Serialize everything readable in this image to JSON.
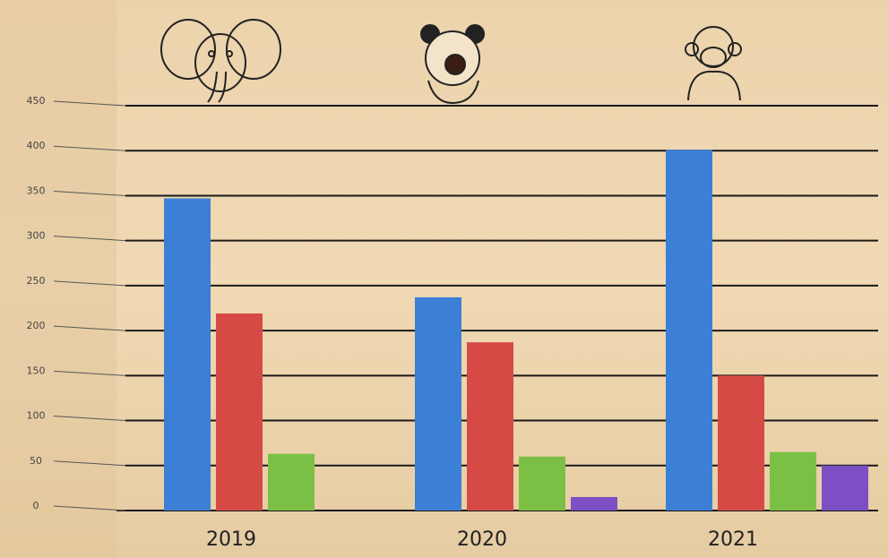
{
  "chart_data": {
    "type": "bar",
    "categories": [
      "2019",
      "2020",
      "2021"
    ],
    "series": [
      {
        "color": "#3b7fd6",
        "values": [
          347,
          237,
          401
        ]
      },
      {
        "color": "#d64a45",
        "values": [
          219,
          187,
          150
        ]
      },
      {
        "color": "#7cbf45",
        "values": [
          63,
          60,
          65
        ]
      },
      {
        "color": "#7d4fc4",
        "values": [
          null,
          15,
          50
        ]
      }
    ],
    "ylim": [
      0,
      450
    ],
    "yticks": [
      0,
      50,
      100,
      150,
      200,
      250,
      300,
      350,
      400,
      450
    ],
    "grid": true
  }
}
